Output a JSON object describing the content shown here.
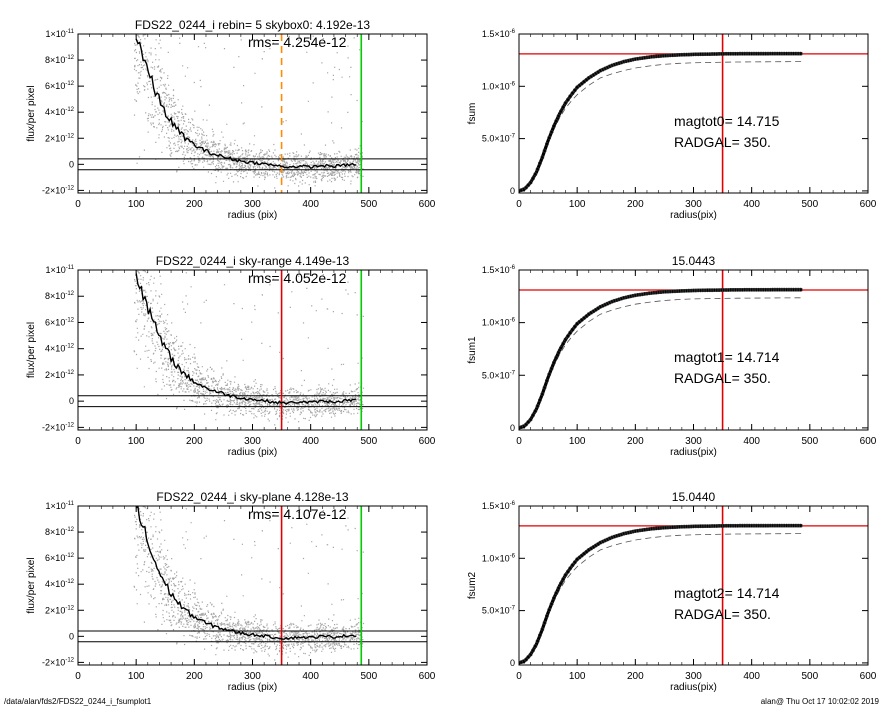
{
  "footer": {
    "path": "/data/alan/fds2/FDS22_0244_i_fsumplot1",
    "stamp": "alan@  Thu Oct 17 10:02:02 2019"
  },
  "colors": {
    "scatter": "#a6a6a6",
    "curve": "#000000",
    "red": "#e00000",
    "green": "#00cc00",
    "orange": "#ff8c00",
    "guide": "#555555"
  },
  "chart_data": [
    {
      "type": "scatter",
      "title": "FDS22_0244_i rebin= 5    skybox0:  4.192e-13",
      "rms_label": "rms= 4.254e-12",
      "xlabel": "radius (pix)",
      "ylabel": "flux/per pixel",
      "xlim": [
        0,
        600
      ],
      "ylim": [
        -2.2e-12,
        1e-11
      ],
      "xticks": [
        "0",
        "100",
        "200",
        "300",
        "400",
        "500",
        "600"
      ],
      "yticks": [
        {
          "mant": "-2×10",
          "exp": "-12",
          "value": -2e-12
        },
        {
          "mant": "0",
          "exp": "",
          "value": 0
        },
        {
          "mant": "2×10",
          "exp": "-12",
          "value": 2e-12
        },
        {
          "mant": "4×10",
          "exp": "-12",
          "value": 4e-12
        },
        {
          "mant": "6×10",
          "exp": "-12",
          "value": 6e-12
        },
        {
          "mant": "8×10",
          "exp": "-12",
          "value": 8e-12
        },
        {
          "mant": "1×10",
          "exp": "-11",
          "value": 1e-11
        }
      ],
      "hlines": [
        4.192e-13,
        -4.192e-13
      ],
      "vlines": [
        {
          "x": 350,
          "color": "orange",
          "dashed": true
        },
        {
          "x": 487,
          "color": "green",
          "dashed": false
        }
      ],
      "series": [
        {
          "x": [
            100,
            110,
            120,
            130,
            140,
            150,
            160,
            170,
            180,
            190,
            200,
            220,
            240,
            260,
            280,
            300,
            320,
            340,
            360,
            380,
            400,
            420,
            440,
            460,
            480
          ],
          "y": [
            1e-11,
            8.6e-12,
            7.2e-12,
            5.9e-12,
            4.9e-12,
            4e-12,
            3.3e-12,
            2.7e-12,
            2.2e-12,
            1.8e-12,
            1.5e-12,
            1e-12,
            7e-13,
            4.5e-13,
            2.5e-13,
            1.3e-13,
            4e-14,
            -1e-13,
            -2e-13,
            -1.5e-13,
            -2e-13,
            -1e-13,
            -1.5e-13,
            -5e-14,
            0
          ]
        }
      ]
    },
    {
      "type": "line",
      "title": "",
      "xlabel": "radius(pix)",
      "ylabel": "fsum",
      "xlim": [
        0,
        600
      ],
      "ylim": [
        -2e-08,
        1.5e-06
      ],
      "xticks": [
        "0",
        "100",
        "200",
        "300",
        "400",
        "500",
        "600"
      ],
      "yticks": [
        {
          "mant": "0",
          "exp": "",
          "value": 0
        },
        {
          "mant": "5.0×10",
          "exp": "-7",
          "value": 5e-07
        },
        {
          "mant": "1.0×10",
          "exp": "-6",
          "value": 1e-06
        },
        {
          "mant": "1.5×10",
          "exp": "-6",
          "value": 1.5e-06
        }
      ],
      "annotations": [
        "magtot0=  14.715",
        "RADGAL=    350."
      ],
      "hline": 1.31e-06,
      "vline": 350,
      "series": [
        {
          "name": "fsum",
          "x": [
            0,
            10,
            20,
            30,
            40,
            50,
            60,
            70,
            80,
            90,
            100,
            120,
            140,
            160,
            180,
            200,
            225,
            250,
            275,
            300,
            325,
            350,
            375,
            400,
            425,
            450,
            487
          ],
          "y": [
            0,
            2e-08,
            8e-08,
            1.8e-07,
            3.2e-07,
            4.8e-07,
            6.2e-07,
            7.4e-07,
            8.4e-07,
            9.2e-07,
            9.9e-07,
            1.08e-06,
            1.15e-06,
            1.2e-06,
            1.235e-06,
            1.26e-06,
            1.28e-06,
            1.293e-06,
            1.3e-06,
            1.305e-06,
            1.308e-06,
            1.31e-06,
            1.311e-06,
            1.312e-06,
            1.312e-06,
            1.313e-06,
            1.313e-06
          ]
        },
        {
          "name": "dashed",
          "x": [
            0,
            10,
            20,
            30,
            40,
            50,
            60,
            70,
            80,
            90,
            100,
            120,
            140,
            160,
            180,
            200,
            225,
            250,
            275,
            300,
            325,
            350,
            375,
            400,
            425,
            450,
            487
          ],
          "y": [
            0,
            2e-08,
            8e-08,
            1.8e-07,
            3.1e-07,
            4.6e-07,
            5.9e-07,
            7e-07,
            7.9e-07,
            8.6e-07,
            9.2e-07,
            1.01e-06,
            1.08e-06,
            1.12e-06,
            1.15e-06,
            1.175e-06,
            1.195e-06,
            1.21e-06,
            1.22e-06,
            1.225e-06,
            1.228e-06,
            1.23e-06,
            1.232e-06,
            1.233e-06,
            1.234e-06,
            1.235e-06,
            1.236e-06
          ]
        }
      ]
    },
    {
      "type": "scatter",
      "title": "FDS22_0244_i sky-range  4.149e-13",
      "rms_label": "rms= 4.052e-12",
      "xlabel": "radius (pix)",
      "ylabel": "flux/per pixel",
      "xlim": [
        0,
        600
      ],
      "ylim": [
        -2.2e-12,
        1e-11
      ],
      "xticks": [
        "0",
        "100",
        "200",
        "300",
        "400",
        "500",
        "600"
      ],
      "yticks": [
        {
          "mant": "-2×10",
          "exp": "-12",
          "value": -2e-12
        },
        {
          "mant": "0",
          "exp": "",
          "value": 0
        },
        {
          "mant": "2×10",
          "exp": "-12",
          "value": 2e-12
        },
        {
          "mant": "4×10",
          "exp": "-12",
          "value": 4e-12
        },
        {
          "mant": "6×10",
          "exp": "-12",
          "value": 6e-12
        },
        {
          "mant": "8×10",
          "exp": "-12",
          "value": 8e-12
        },
        {
          "mant": "1×10",
          "exp": "-11",
          "value": 1e-11
        }
      ],
      "hlines": [
        4.149e-13,
        -4.149e-13
      ],
      "vlines": [
        {
          "x": 350,
          "color": "red",
          "dashed": false
        },
        {
          "x": 487,
          "color": "green",
          "dashed": false
        }
      ],
      "series": [
        {
          "x": [
            100,
            110,
            120,
            130,
            140,
            150,
            160,
            170,
            180,
            190,
            200,
            220,
            240,
            260,
            280,
            300,
            320,
            340,
            360,
            380,
            400,
            420,
            440,
            460,
            480
          ],
          "y": [
            1e-11,
            8.6e-12,
            7.2e-12,
            5.9e-12,
            4.9e-12,
            4e-12,
            3.3e-12,
            2.7e-12,
            2.2e-12,
            1.8e-12,
            1.5e-12,
            1e-12,
            7e-13,
            4.5e-13,
            2.5e-13,
            1.3e-13,
            4e-14,
            -1e-13,
            -1.5e-13,
            -5e-14,
            -1e-13,
            0,
            -5e-14,
            5e-14,
            1e-13
          ]
        }
      ]
    },
    {
      "type": "line",
      "title": "15.0443",
      "xlabel": "radius(pix)",
      "ylabel": "fsum1",
      "xlim": [
        0,
        600
      ],
      "ylim": [
        -2e-08,
        1.5e-06
      ],
      "xticks": [
        "0",
        "100",
        "200",
        "300",
        "400",
        "500",
        "600"
      ],
      "yticks": [
        {
          "mant": "0",
          "exp": "",
          "value": 0
        },
        {
          "mant": "5.0×10",
          "exp": "-7",
          "value": 5e-07
        },
        {
          "mant": "1.0×10",
          "exp": "-6",
          "value": 1e-06
        },
        {
          "mant": "1.5×10",
          "exp": "-6",
          "value": 1.5e-06
        }
      ],
      "annotations": [
        "magtot1=  14.714",
        "RADGAL=    350."
      ],
      "hline": 1.31e-06,
      "vline": 350,
      "series": [
        {
          "name": "fsum1",
          "x": [
            0,
            10,
            20,
            30,
            40,
            50,
            60,
            70,
            80,
            90,
            100,
            120,
            140,
            160,
            180,
            200,
            225,
            250,
            275,
            300,
            325,
            350,
            375,
            400,
            425,
            450,
            487
          ],
          "y": [
            0,
            2e-08,
            8e-08,
            1.8e-07,
            3.2e-07,
            4.8e-07,
            6.2e-07,
            7.4e-07,
            8.4e-07,
            9.2e-07,
            9.9e-07,
            1.08e-06,
            1.15e-06,
            1.2e-06,
            1.235e-06,
            1.26e-06,
            1.28e-06,
            1.293e-06,
            1.3e-06,
            1.305e-06,
            1.308e-06,
            1.31e-06,
            1.311e-06,
            1.312e-06,
            1.312e-06,
            1.313e-06,
            1.313e-06
          ]
        },
        {
          "name": "dashed",
          "x": [
            0,
            10,
            20,
            30,
            40,
            50,
            60,
            70,
            80,
            90,
            100,
            120,
            140,
            160,
            180,
            200,
            225,
            250,
            275,
            300,
            325,
            350,
            375,
            400,
            425,
            450,
            487
          ],
          "y": [
            0,
            2e-08,
            8e-08,
            1.8e-07,
            3.1e-07,
            4.6e-07,
            5.9e-07,
            7e-07,
            7.9e-07,
            8.6e-07,
            9.2e-07,
            1.01e-06,
            1.08e-06,
            1.12e-06,
            1.15e-06,
            1.175e-06,
            1.195e-06,
            1.21e-06,
            1.22e-06,
            1.225e-06,
            1.228e-06,
            1.23e-06,
            1.232e-06,
            1.233e-06,
            1.234e-06,
            1.235e-06,
            1.236e-06
          ]
        }
      ]
    },
    {
      "type": "scatter",
      "title": "FDS22_0244_i sky-plane  4.128e-13",
      "rms_label": "rms= 4.107e-12",
      "xlabel": "radius (pix)",
      "ylabel": "flux/per pixel",
      "xlim": [
        0,
        600
      ],
      "ylim": [
        -2.2e-12,
        1e-11
      ],
      "xticks": [
        "0",
        "100",
        "200",
        "300",
        "400",
        "500",
        "600"
      ],
      "yticks": [
        {
          "mant": "-2×10",
          "exp": "-12",
          "value": -2e-12
        },
        {
          "mant": "0",
          "exp": "",
          "value": 0
        },
        {
          "mant": "2×10",
          "exp": "-12",
          "value": 2e-12
        },
        {
          "mant": "4×10",
          "exp": "-12",
          "value": 4e-12
        },
        {
          "mant": "6×10",
          "exp": "-12",
          "value": 6e-12
        },
        {
          "mant": "8×10",
          "exp": "-12",
          "value": 8e-12
        },
        {
          "mant": "1×10",
          "exp": "-11",
          "value": 1e-11
        }
      ],
      "hlines": [
        4.128e-13,
        -4.128e-13
      ],
      "vlines": [
        {
          "x": 350,
          "color": "red",
          "dashed": false
        },
        {
          "x": 487,
          "color": "green",
          "dashed": false
        }
      ],
      "series": [
        {
          "x": [
            100,
            110,
            120,
            130,
            140,
            150,
            160,
            170,
            180,
            190,
            200,
            220,
            240,
            260,
            280,
            300,
            320,
            340,
            360,
            380,
            400,
            420,
            440,
            460,
            480
          ],
          "y": [
            1e-11,
            8.6e-12,
            7.2e-12,
            5.9e-12,
            4.9e-12,
            4e-12,
            3.3e-12,
            2.7e-12,
            2.2e-12,
            1.8e-12,
            1.5e-12,
            1e-12,
            7e-13,
            4.5e-13,
            2.5e-13,
            1.3e-13,
            4e-14,
            -1e-13,
            -1.5e-13,
            -5e-14,
            -1e-13,
            0,
            -5e-14,
            5e-14,
            1e-13
          ]
        }
      ]
    },
    {
      "type": "line",
      "title": "15.0440",
      "xlabel": "radius(pix)",
      "ylabel": "fsum2",
      "xlim": [
        0,
        600
      ],
      "ylim": [
        -2e-08,
        1.5e-06
      ],
      "xticks": [
        "0",
        "100",
        "200",
        "300",
        "400",
        "500",
        "600"
      ],
      "yticks": [
        {
          "mant": "0",
          "exp": "",
          "value": 0
        },
        {
          "mant": "5.0×10",
          "exp": "-7",
          "value": 5e-07
        },
        {
          "mant": "1.0×10",
          "exp": "-6",
          "value": 1e-06
        },
        {
          "mant": "1.5×10",
          "exp": "-6",
          "value": 1.5e-06
        }
      ],
      "annotations": [
        "magtot2=  14.714",
        "RADGAL=    350."
      ],
      "hline": 1.31e-06,
      "vline": 350,
      "series": [
        {
          "name": "fsum2",
          "x": [
            0,
            10,
            20,
            30,
            40,
            50,
            60,
            70,
            80,
            90,
            100,
            120,
            140,
            160,
            180,
            200,
            225,
            250,
            275,
            300,
            325,
            350,
            375,
            400,
            425,
            450,
            487
          ],
          "y": [
            0,
            2e-08,
            8e-08,
            1.8e-07,
            3.2e-07,
            4.8e-07,
            6.2e-07,
            7.4e-07,
            8.4e-07,
            9.2e-07,
            9.9e-07,
            1.08e-06,
            1.15e-06,
            1.2e-06,
            1.235e-06,
            1.26e-06,
            1.28e-06,
            1.293e-06,
            1.3e-06,
            1.305e-06,
            1.308e-06,
            1.31e-06,
            1.311e-06,
            1.312e-06,
            1.312e-06,
            1.313e-06,
            1.313e-06
          ]
        },
        {
          "name": "dashed",
          "x": [
            0,
            10,
            20,
            30,
            40,
            50,
            60,
            70,
            80,
            90,
            100,
            120,
            140,
            160,
            180,
            200,
            225,
            250,
            275,
            300,
            325,
            350,
            375,
            400,
            425,
            450,
            487
          ],
          "y": [
            0,
            2e-08,
            8e-08,
            1.8e-07,
            3.1e-07,
            4.6e-07,
            5.9e-07,
            7e-07,
            7.9e-07,
            8.6e-07,
            9.2e-07,
            1.01e-06,
            1.08e-06,
            1.12e-06,
            1.15e-06,
            1.175e-06,
            1.195e-06,
            1.21e-06,
            1.22e-06,
            1.225e-06,
            1.228e-06,
            1.23e-06,
            1.232e-06,
            1.233e-06,
            1.234e-06,
            1.235e-06,
            1.236e-06
          ]
        }
      ]
    }
  ]
}
